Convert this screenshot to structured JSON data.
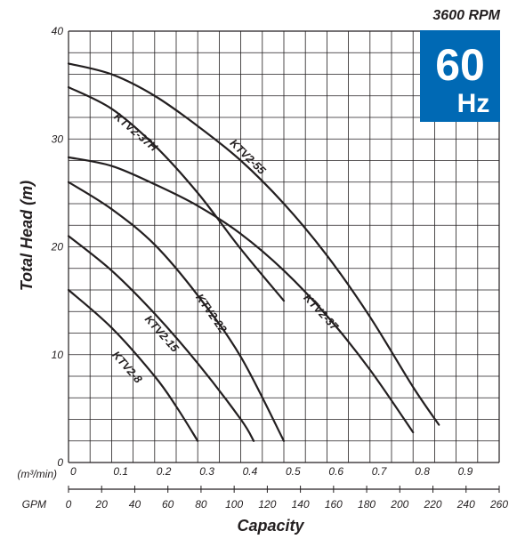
{
  "chart_data": {
    "type": "line",
    "title": "",
    "xlabel": "Capacity",
    "ylabel": "Total Head (m)",
    "x_unit_label": "(m³/min)",
    "gpm_label": "GPM",
    "xlim": [
      0,
      1.0
    ],
    "ylim": [
      0,
      40
    ],
    "x_ticks": [
      "0",
      "0.1",
      "0.2",
      "0.3",
      "0.4",
      "0.5",
      "0.6",
      "0.7",
      "0.8",
      "0.9"
    ],
    "x_tick_values": [
      0,
      0.1,
      0.2,
      0.3,
      0.4,
      0.5,
      0.6,
      0.7,
      0.8,
      0.9
    ],
    "y_ticks": [
      "0",
      "10",
      "20",
      "30",
      "40"
    ],
    "y_tick_values": [
      0,
      10,
      20,
      30,
      40
    ],
    "gpm_ticks": [
      "0",
      "20",
      "40",
      "60",
      "80",
      "100",
      "120",
      "140",
      "160",
      "180",
      "200",
      "220",
      "240",
      "260"
    ],
    "gpm_tick_values": [
      0,
      20,
      40,
      60,
      80,
      100,
      120,
      140,
      160,
      180,
      200,
      220,
      240,
      260
    ],
    "gpm_max": 260,
    "grid": true,
    "speed_label": "3600 RPM",
    "frequency_badge": {
      "value": "60",
      "unit": "Hz",
      "color": "#0069b4"
    },
    "series": [
      {
        "name": "KTV2-8",
        "x": [
          0,
          0.1,
          0.2,
          0.25,
          0.3
        ],
        "y": [
          16,
          12.5,
          8,
          5.2,
          2
        ]
      },
      {
        "name": "KTV2-15",
        "x": [
          0,
          0.1,
          0.2,
          0.3,
          0.4,
          0.43
        ],
        "y": [
          21,
          17.8,
          13.8,
          9.2,
          4,
          2
        ]
      },
      {
        "name": "KTV2-22",
        "x": [
          0,
          0.1,
          0.2,
          0.3,
          0.4,
          0.5
        ],
        "y": [
          26,
          23.5,
          20.2,
          15.5,
          9.8,
          2
        ]
      },
      {
        "name": "KTV2-37",
        "x": [
          0,
          0.1,
          0.2,
          0.3,
          0.4,
          0.5,
          0.6,
          0.7,
          0.8
        ],
        "y": [
          28.3,
          27.5,
          25.8,
          23.8,
          21.2,
          17.8,
          13.6,
          8.6,
          2.8
        ]
      },
      {
        "name": "KTV2-37H",
        "x": [
          0,
          0.1,
          0.2,
          0.3,
          0.4,
          0.5
        ],
        "y": [
          34.8,
          32.8,
          29.4,
          25,
          19.8,
          15
        ]
      },
      {
        "name": "KTV2-55",
        "x": [
          0,
          0.1,
          0.2,
          0.3,
          0.4,
          0.5,
          0.6,
          0.7,
          0.8,
          0.86
        ],
        "y": [
          37,
          36,
          34,
          31.2,
          28,
          24,
          19.2,
          13.5,
          7,
          3.5
        ]
      }
    ],
    "curve_labels": [
      {
        "series": "KTV2-37H",
        "at_x": 0.155,
        "at_y": 30.6,
        "text": "KTV2-37H"
      },
      {
        "series": "KTV2-55",
        "at_x": 0.415,
        "at_y": 28.3,
        "text": "KTV2-55"
      },
      {
        "series": "KTV2-22",
        "at_x": 0.33,
        "at_y": 13.8,
        "text": "KTV2-22"
      },
      {
        "series": "KTV2-15",
        "at_x": 0.215,
        "at_y": 11.9,
        "text": "KTV2-15"
      },
      {
        "series": "KTV2-8",
        "at_x": 0.135,
        "at_y": 8.8,
        "text": "KTV2-8"
      },
      {
        "series": "KTV2-37",
        "at_x": 0.585,
        "at_y": 13.9,
        "text": "KTV2-37"
      }
    ]
  }
}
